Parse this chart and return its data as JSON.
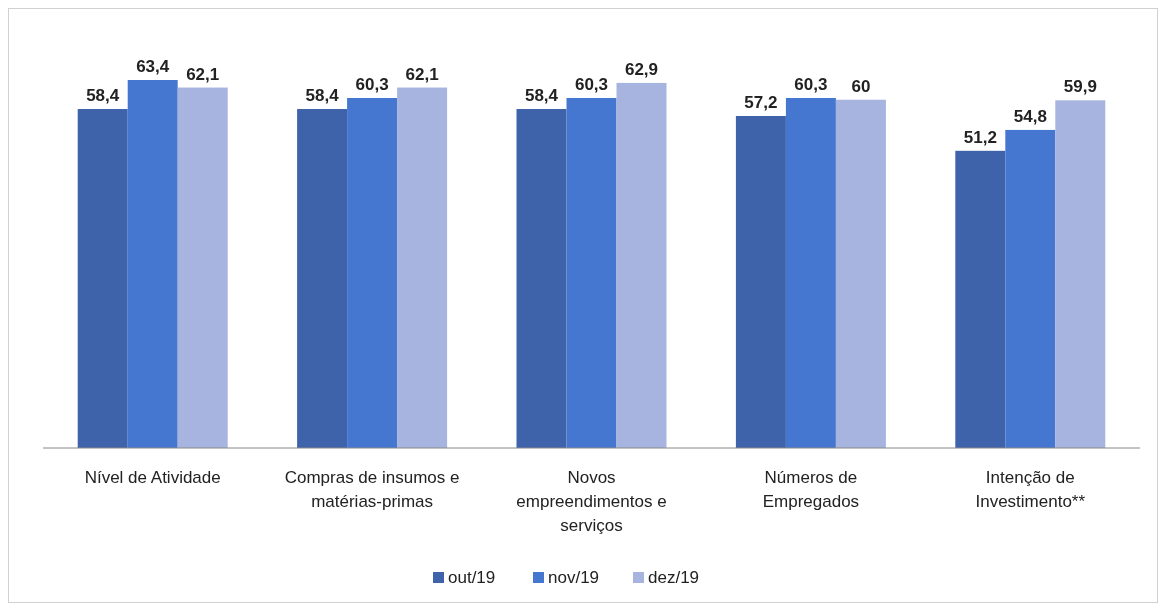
{
  "chart_data": {
    "type": "bar",
    "categories": [
      "Nível de Atividade",
      "Compras de insumos e matérias-primas",
      "Novos empreendimentos e serviços",
      "Números de Empregados",
      "Intenção de Investimento**"
    ],
    "series": [
      {
        "name": "out/19",
        "color": "#3f63ab",
        "values": [
          58.4,
          58.4,
          58.4,
          57.2,
          51.2
        ],
        "value_labels": [
          "58,4",
          "58,4",
          "58,4",
          "57,2",
          "51,2"
        ]
      },
      {
        "name": "nov/19",
        "color": "#4677d0",
        "values": [
          63.4,
          60.3,
          60.3,
          60.3,
          54.8
        ],
        "value_labels": [
          "63,4",
          "60,3",
          "60,3",
          "60,3",
          "54,8"
        ]
      },
      {
        "name": "dez/19",
        "color": "#a7b4df",
        "values": [
          62.1,
          62.1,
          62.9,
          60,
          59.9
        ],
        "value_labels": [
          "62,1",
          "62,1",
          "62,9",
          "60",
          "59,9"
        ]
      }
    ],
    "legend": "bottom",
    "grid": false
  }
}
